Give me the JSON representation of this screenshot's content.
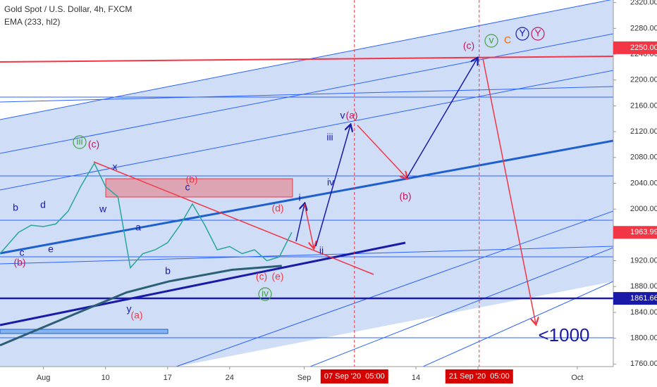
{
  "chart_data": {
    "type": "line",
    "title": "Gold Spot / U.S. Dollar, 4h, FXCM",
    "series": [
      {
        "color": "#26a69a",
        "x": [
          -3.5,
          -3,
          -2,
          -1,
          0,
          1,
          2,
          3,
          4.1,
          5,
          6,
          7,
          8,
          9,
          10,
          11,
          12,
          13,
          14,
          15,
          16,
          17,
          18,
          19,
          20
        ],
        "values": [
          1931,
          1942,
          1964,
          1975,
          1973,
          1977,
          1997,
          2035,
          2071,
          2035,
          2019,
          1909,
          1931,
          1937,
          1948,
          1975,
          2008,
          1975,
          1937,
          1942,
          1931,
          1937,
          1920,
          1926,
          1964
        ]
      },
      {
        "name": "EMA (233, hl2)",
        "color": "#2b5f75",
        "x": [
          -3.5,
          6.7,
          10.1,
          15.2,
          19.2
        ],
        "values": [
          1789,
          1871,
          1888,
          1906,
          1912
        ]
      }
    ],
    "xlim": [
      -3.5,
      45.9
    ],
    "xticks": [
      {
        "value": 0,
        "label": "Aug"
      },
      {
        "value": 5,
        "label": "10"
      },
      {
        "value": 10,
        "label": "17"
      },
      {
        "value": 15,
        "label": "24"
      },
      {
        "value": 21,
        "label": "Sep"
      },
      {
        "value": 30,
        "label": "14"
      },
      {
        "value": 35,
        "label": "21"
      },
      {
        "value": 43,
        "label": "Oct"
      }
    ],
    "ylim": [
      1756,
      2324
    ],
    "yticks": [
      {
        "value": 1760,
        "label": "1760.00"
      },
      {
        "value": 1800,
        "label": "1800.00"
      },
      {
        "value": 1840,
        "label": "1840.00"
      },
      {
        "value": 1880,
        "label": "1880.00"
      },
      {
        "value": 1920,
        "label": "1920.00"
      },
      {
        "value": 1960,
        "label": "1960.00"
      },
      {
        "value": 2000,
        "label": "2000.00"
      },
      {
        "value": 2040,
        "label": "2040.00"
      },
      {
        "value": 2080,
        "label": "2080.00"
      },
      {
        "value": 2120,
        "label": "2120.00"
      },
      {
        "value": 2160,
        "label": "2160.00"
      },
      {
        "value": 2200,
        "label": "2200.00"
      },
      {
        "value": 2240,
        "label": "2240.00"
      },
      {
        "value": 2280,
        "label": "2280.00"
      },
      {
        "value": 2320,
        "label": "2320.00"
      }
    ],
    "price_tags": [
      {
        "value": 2250,
        "label": "2250.00",
        "color": "#f23645"
      },
      {
        "value": 1963.99,
        "label": "1963.99",
        "color": "#f23645"
      },
      {
        "value": 1861.66,
        "label": "1861.66",
        "color": "#1a1aa8"
      }
    ],
    "time_markers": [
      {
        "value": 25.05,
        "label": "07 Sep '20  05:00"
      },
      {
        "value": 35.1,
        "label": "21 Sep '20  05:00"
      }
    ],
    "annotations": [
      "(c)",
      "v",
      "C",
      "Y",
      "Y",
      "v",
      "(a)",
      "iii",
      "iv",
      "(b)",
      "i",
      "ii",
      "(d)",
      "(b)",
      "c",
      "x",
      "w",
      "a",
      "b",
      "(c)",
      "(e)",
      "iv",
      "y",
      "(a)",
      "iii",
      "(c)",
      "b",
      "d",
      "c",
      "e",
      "(b)",
      "<1000"
    ]
  }
}
